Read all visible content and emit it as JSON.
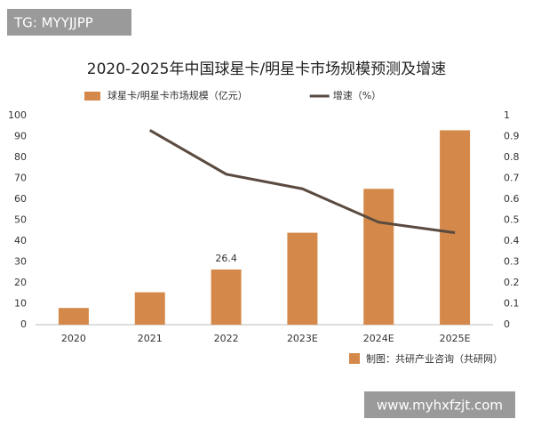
{
  "watermark_top": "TG: MYYJJPP",
  "watermark_bottom": "www.myhxfzjt.com",
  "source": "制图：共研产业咨询（共研网）",
  "chart_data": {
    "type": "bar",
    "title": "2020-2025年中国球星卡/明星卡市场规模预测及增速",
    "categories": [
      "2020",
      "2021",
      "2022",
      "2023E",
      "2024E",
      "2025E"
    ],
    "series": [
      {
        "name": "球星卡/明星卡市场规模（亿元）",
        "type": "bar",
        "color": "#d4894a",
        "values": [
          8,
          15.5,
          26.4,
          44,
          65,
          93
        ],
        "value_labels": [
          null,
          null,
          "26.4",
          null,
          null,
          null
        ]
      },
      {
        "name": "增速（%）",
        "type": "line",
        "axis": "y2",
        "color": "#5a4a3f",
        "values": [
          null,
          0.93,
          0.72,
          0.65,
          0.49,
          0.44
        ]
      }
    ],
    "ylim": [
      0,
      100
    ],
    "yticks": [
      0,
      10,
      20,
      30,
      40,
      50,
      60,
      70,
      80,
      90,
      100
    ],
    "y2lim": [
      0,
      1
    ],
    "y2ticks": [
      0,
      0.1,
      0.2,
      0.3,
      0.4,
      0.5,
      0.6,
      0.7,
      0.8,
      0.9,
      1
    ],
    "legend": "top"
  }
}
